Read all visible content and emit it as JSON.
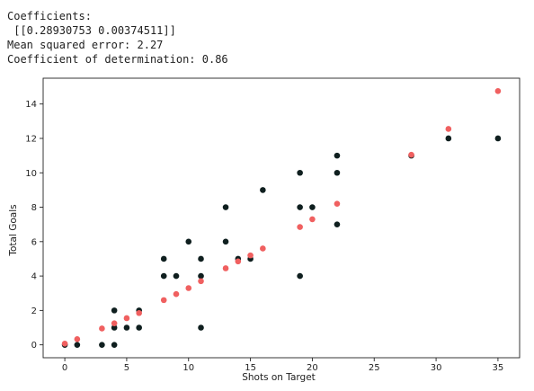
{
  "output_lines": [
    "Coefficients:",
    " [[0.28930753 0.00374511]]",
    "Mean squared error: 2.27",
    "Coefficient of determination: 0.86"
  ],
  "colors": {
    "actual_points": "#0f1f1f",
    "predicted_points": "#f06060",
    "axis": "#222222"
  },
  "chart_data": {
    "type": "scatter",
    "title": "",
    "xlabel": "Shots on Target",
    "ylabel": "Total Goals",
    "xlim": [
      -1.75,
      36.75
    ],
    "ylim": [
      -0.75,
      15.5
    ],
    "x_ticks": [
      0,
      5,
      10,
      15,
      20,
      25,
      30,
      35
    ],
    "y_ticks": [
      0,
      2,
      4,
      6,
      8,
      10,
      12,
      14
    ],
    "grid": false,
    "legend": "none",
    "series": [
      {
        "color": "#0f1f1f",
        "points": [
          [
            0,
            0
          ],
          [
            1,
            0
          ],
          [
            3,
            0
          ],
          [
            4,
            0
          ],
          [
            4,
            1
          ],
          [
            4,
            2
          ],
          [
            5,
            1
          ],
          [
            6,
            1
          ],
          [
            6,
            2
          ],
          [
            8,
            4
          ],
          [
            8,
            5
          ],
          [
            9,
            4
          ],
          [
            10,
            6
          ],
          [
            11,
            1
          ],
          [
            11,
            4
          ],
          [
            11,
            5
          ],
          [
            13,
            6
          ],
          [
            13,
            8
          ],
          [
            14,
            5
          ],
          [
            15,
            5
          ],
          [
            16,
            9
          ],
          [
            19,
            4
          ],
          [
            19,
            8
          ],
          [
            19,
            10
          ],
          [
            20,
            8
          ],
          [
            22,
            7
          ],
          [
            22,
            10
          ],
          [
            22,
            11
          ],
          [
            28,
            11
          ],
          [
            31,
            12
          ],
          [
            35,
            12
          ]
        ]
      },
      {
        "color": "#f06060",
        "points": [
          [
            0,
            0.07
          ],
          [
            1,
            0.33
          ],
          [
            3,
            0.95
          ],
          [
            4,
            1.25
          ],
          [
            5,
            1.55
          ],
          [
            6,
            1.85
          ],
          [
            8,
            2.6
          ],
          [
            9,
            2.95
          ],
          [
            10,
            3.3
          ],
          [
            11,
            3.7
          ],
          [
            13,
            4.45
          ],
          [
            14,
            4.85
          ],
          [
            15,
            5.2
          ],
          [
            16,
            5.6
          ],
          [
            19,
            6.85
          ],
          [
            20,
            7.3
          ],
          [
            22,
            8.2
          ],
          [
            28,
            11.05
          ],
          [
            31,
            12.55
          ],
          [
            35,
            14.75
          ]
        ]
      }
    ]
  }
}
